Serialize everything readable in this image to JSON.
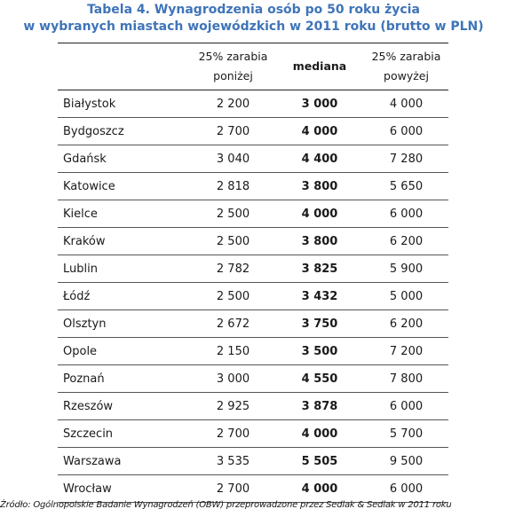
{
  "title": {
    "line1": "Tabela 4. Wynagrodzenia osób po 50 roku życia",
    "line2": "w wybranych miastach wojewódzkich w 2011 roku (brutto w PLN)"
  },
  "colors": {
    "title": "#3f74b8",
    "rule": "#555555"
  },
  "table": {
    "headers": {
      "city": "",
      "low_line1": "25% zarabia",
      "low_line2": "poniżej",
      "median": "mediana",
      "high_line1": "25% zarabia",
      "high_line2": "powyżej"
    },
    "rows": [
      {
        "city": "Białystok",
        "low": "2 200",
        "median": "3 000",
        "high": "4 000"
      },
      {
        "city": "Bydgoszcz",
        "low": "2 700",
        "median": "4 000",
        "high": "6 000"
      },
      {
        "city": "Gdańsk",
        "low": "3 040",
        "median": "4 400",
        "high": "7 280"
      },
      {
        "city": "Katowice",
        "low": "2 818",
        "median": "3 800",
        "high": "5 650"
      },
      {
        "city": "Kielce",
        "low": "2 500",
        "median": "4 000",
        "high": "6 000"
      },
      {
        "city": "Kraków",
        "low": "2 500",
        "median": "3 800",
        "high": "6 200"
      },
      {
        "city": "Lublin",
        "low": "2 782",
        "median": "3 825",
        "high": "5 900"
      },
      {
        "city": "Łódź",
        "low": "2 500",
        "median": "3 432",
        "high": "5 000"
      },
      {
        "city": "Olsztyn",
        "low": "2 672",
        "median": "3 750",
        "high": "6 200"
      },
      {
        "city": "Opole",
        "low": "2 150",
        "median": "3 500",
        "high": "7 200"
      },
      {
        "city": "Poznań",
        "low": "3 000",
        "median": "4 550",
        "high": "7 800"
      },
      {
        "city": "Rzeszów",
        "low": "2 925",
        "median": "3 878",
        "high": "6 000"
      },
      {
        "city": "Szczecin",
        "low": "2 700",
        "median": "4 000",
        "high": "5 700"
      },
      {
        "city": "Warszawa",
        "low": "3 535",
        "median": "5 505",
        "high": "9 500"
      },
      {
        "city": "Wrocław",
        "low": "2 700",
        "median": "4 000",
        "high": "6 000"
      }
    ]
  },
  "source": "Źródło: Ogólnopolskie Badanie Wynagrodzeń (OBW) przeprowadzone przez Sedlak & Sedlak w 2011 roku"
}
